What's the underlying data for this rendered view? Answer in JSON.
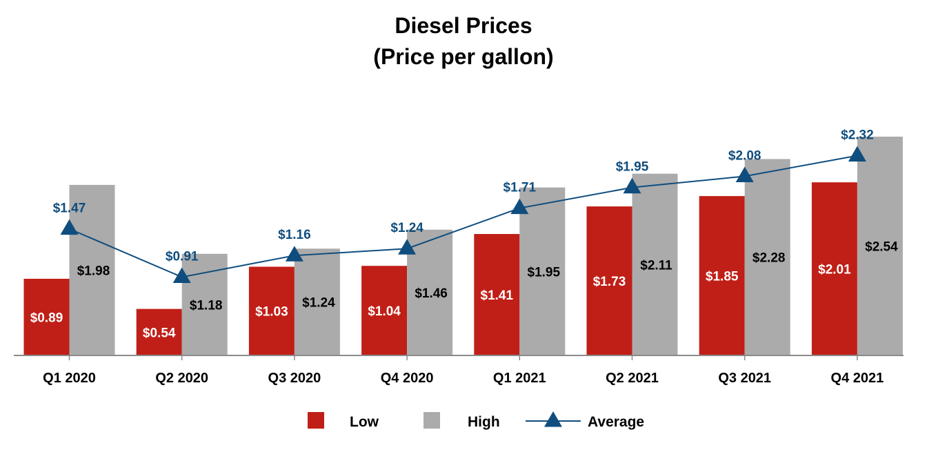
{
  "chart_data": {
    "type": "bar",
    "title": "Diesel Prices",
    "subtitle": "(Price per gallon)",
    "xlabel": "",
    "ylabel": "",
    "ylim": [
      0,
      2.65
    ],
    "grid": false,
    "legend_position": "bottom",
    "categories": [
      "Q1 2020",
      "Q2 2020",
      "Q3 2020",
      "Q4 2020",
      "Q1 2021",
      "Q2 2021",
      "Q3 2021",
      "Q4 2021"
    ],
    "series": [
      {
        "name": "Low",
        "kind": "bar",
        "values": [
          0.89,
          0.54,
          1.03,
          1.04,
          1.41,
          1.73,
          1.85,
          2.01
        ],
        "labels": [
          "$0.89",
          "$0.54",
          "$1.03",
          "$1.04",
          "$1.41",
          "$1.73",
          "$1.85",
          "$2.01"
        ],
        "color": "#C01F17"
      },
      {
        "name": "High",
        "kind": "bar",
        "values": [
          1.98,
          1.18,
          1.24,
          1.46,
          1.95,
          2.11,
          2.28,
          2.54
        ],
        "labels": [
          "$1.98",
          "$1.18",
          "$1.24",
          "$1.46",
          "$1.95",
          "$2.11",
          "$2.28",
          "$2.54"
        ],
        "color": "#ABABAB"
      },
      {
        "name": "Average",
        "kind": "line",
        "marker": "triangle",
        "values": [
          1.47,
          0.91,
          1.16,
          1.24,
          1.71,
          1.95,
          2.08,
          2.32
        ],
        "labels": [
          "$1.47",
          "$0.91",
          "$1.16",
          "$1.24",
          "$1.71",
          "$1.95",
          "$2.08",
          "$2.32"
        ],
        "color": "#0F4D7E"
      }
    ]
  }
}
